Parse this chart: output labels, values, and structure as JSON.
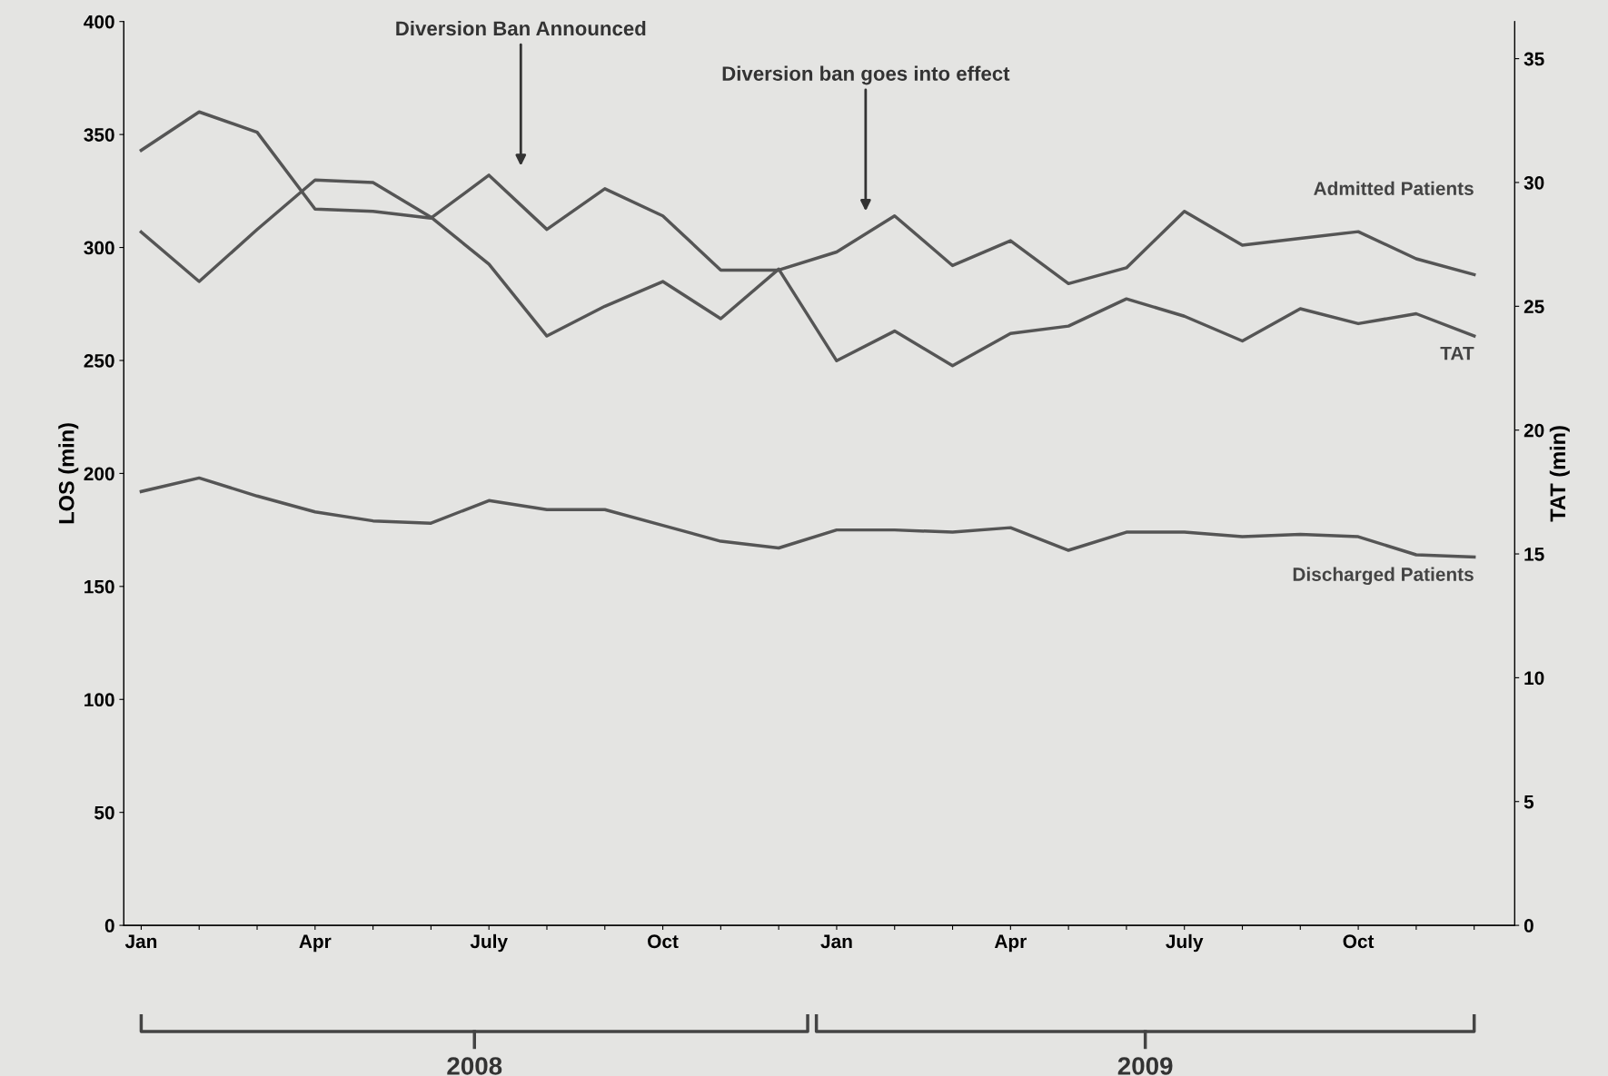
{
  "chart_data": {
    "type": "line",
    "categories": [
      "Jan",
      null,
      null,
      "Apr",
      null,
      null,
      "July",
      null,
      null,
      "Oct",
      null,
      null,
      "Jan",
      null,
      null,
      "Apr",
      null,
      null,
      "July",
      null,
      null,
      "Oct",
      null,
      null
    ],
    "series": [
      {
        "name": "Admitted Patients",
        "color": "#555555",
        "values": [
          343,
          360,
          351,
          317,
          316,
          313,
          332,
          308,
          326,
          314,
          290,
          290,
          298,
          314,
          292,
          303,
          284,
          291,
          316,
          301,
          304,
          307,
          295,
          288
        ]
      },
      {
        "name": "TAT",
        "color": "#555555",
        "axis": "y2",
        "values": [
          28.0,
          26.0,
          28.1,
          30.1,
          30.0,
          28.6,
          26.7,
          23.8,
          25.0,
          26.0,
          24.5,
          26.5,
          22.8,
          24.0,
          22.6,
          23.9,
          24.2,
          25.3,
          24.6,
          23.6,
          24.9,
          24.3,
          24.7,
          23.8
        ]
      },
      {
        "name": "Discharged Patients",
        "color": "#555555",
        "values": [
          192,
          198,
          190,
          183,
          179,
          178,
          188,
          184,
          184,
          177,
          170,
          167,
          175,
          175,
          174,
          176,
          166,
          174,
          174,
          172,
          173,
          172,
          164,
          163
        ]
      }
    ],
    "ylabel": "LOS (min)",
    "y2label": "TAT (min)",
    "ylim": [
      0,
      400
    ],
    "yticks": [
      0,
      50,
      100,
      150,
      200,
      250,
      300,
      350,
      400
    ],
    "y2lim": [
      0,
      36.5
    ],
    "y2ticks": [
      0,
      5,
      10,
      15,
      20,
      25,
      30,
      35
    ],
    "annotations": [
      "Diversion Ban Announced",
      "Diversion ban goes into effect",
      "2008",
      "2009"
    ],
    "grid": false,
    "legend": false,
    "marker": "none",
    "line_style": "solid"
  }
}
